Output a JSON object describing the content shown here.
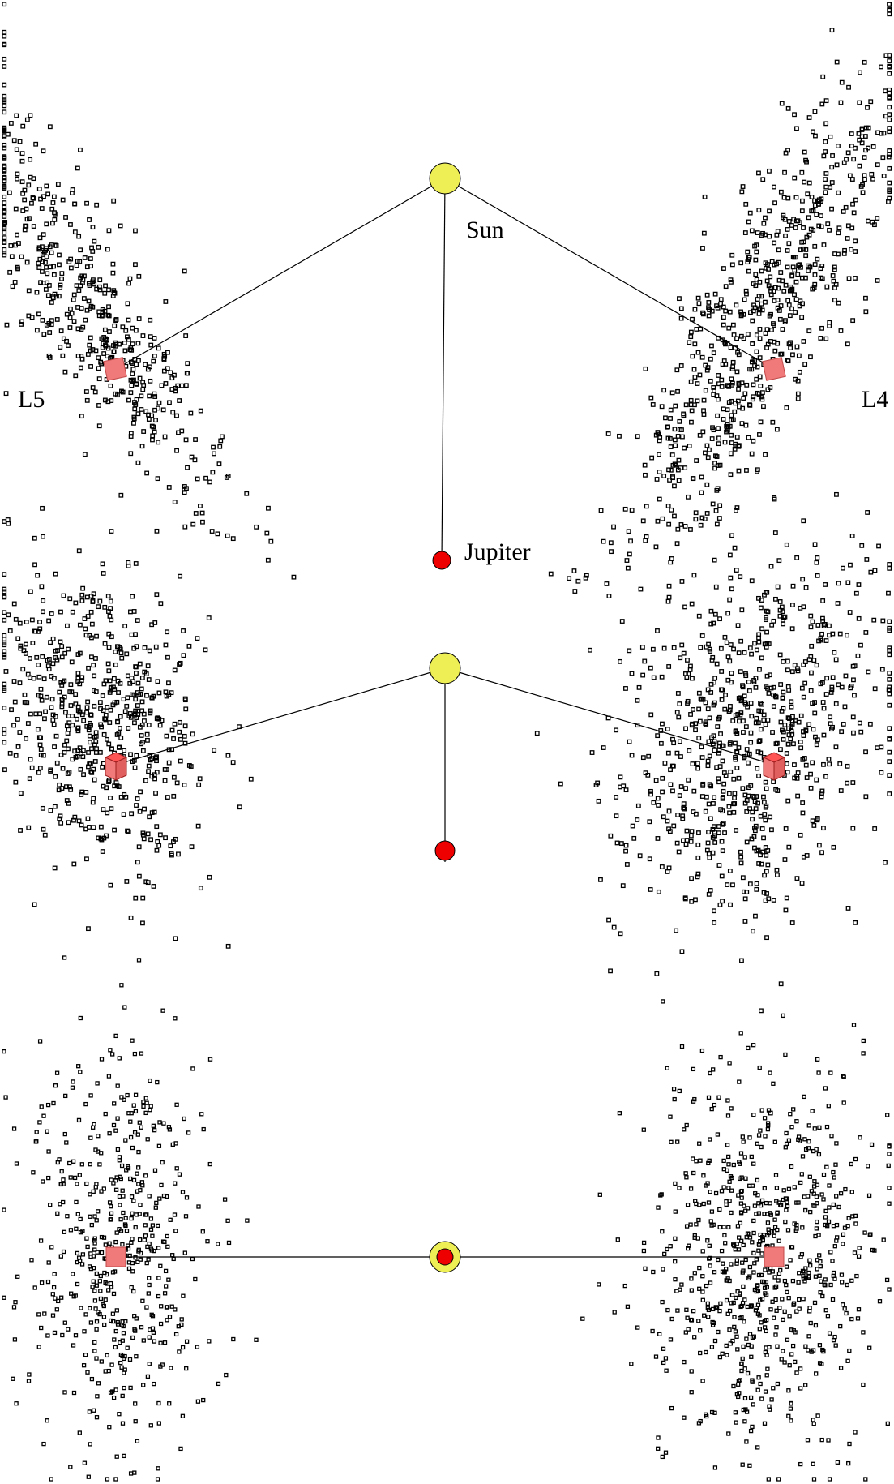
{
  "labels": {
    "sun": "Sun",
    "jupiter": "Jupiter",
    "l4": "L4",
    "l5": "L5"
  },
  "colors": {
    "sun": "#eeee55",
    "jupiter": "#ee0000",
    "lagrange_marker": "#f07a7a",
    "asteroid": "#000000",
    "line": "#000000"
  },
  "views": [
    {
      "view": "oblique-top"
    },
    {
      "view": "oblique-low"
    },
    {
      "view": "edge-on"
    }
  ]
}
